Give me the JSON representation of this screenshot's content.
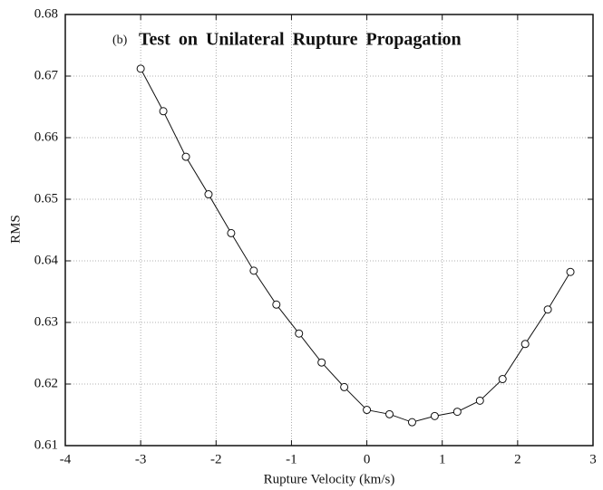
{
  "chart_data": {
    "type": "line",
    "title": "Test on Unilateral Rupture Propagation",
    "panel_label": "(b)",
    "x_label": "Rupture Velocity (km/s)",
    "y_label": "RMS",
    "x": [
      -3,
      -2.7,
      -2.4,
      -2.1,
      -1.8,
      -1.5,
      -1.2,
      -0.9,
      -0.6,
      -0.3,
      0,
      0.3,
      0.6,
      0.9,
      1.2,
      1.5,
      1.8,
      2.1,
      2.4,
      2.7
    ],
    "series": [
      {
        "name": "RMS",
        "color": "#111111",
        "values": [
          0.6712,
          0.6643,
          0.6569,
          0.6508,
          0.6445,
          0.6384,
          0.6329,
          0.6282,
          0.6235,
          0.6195,
          0.6158,
          0.6151,
          0.6138,
          0.6148,
          0.6155,
          0.6173,
          0.6208,
          0.6265,
          0.6321,
          0.6382
        ]
      }
    ],
    "xlim": [
      -4,
      3
    ],
    "xticks": [
      -4,
      -3,
      -2,
      -1,
      0,
      1,
      2,
      3
    ],
    "ylim": [
      0.61,
      0.68
    ],
    "yticks": [
      0.61,
      0.62,
      0.63,
      0.64,
      0.65,
      0.66,
      0.67,
      0.68
    ],
    "grid": true,
    "marker": "open-circle"
  }
}
